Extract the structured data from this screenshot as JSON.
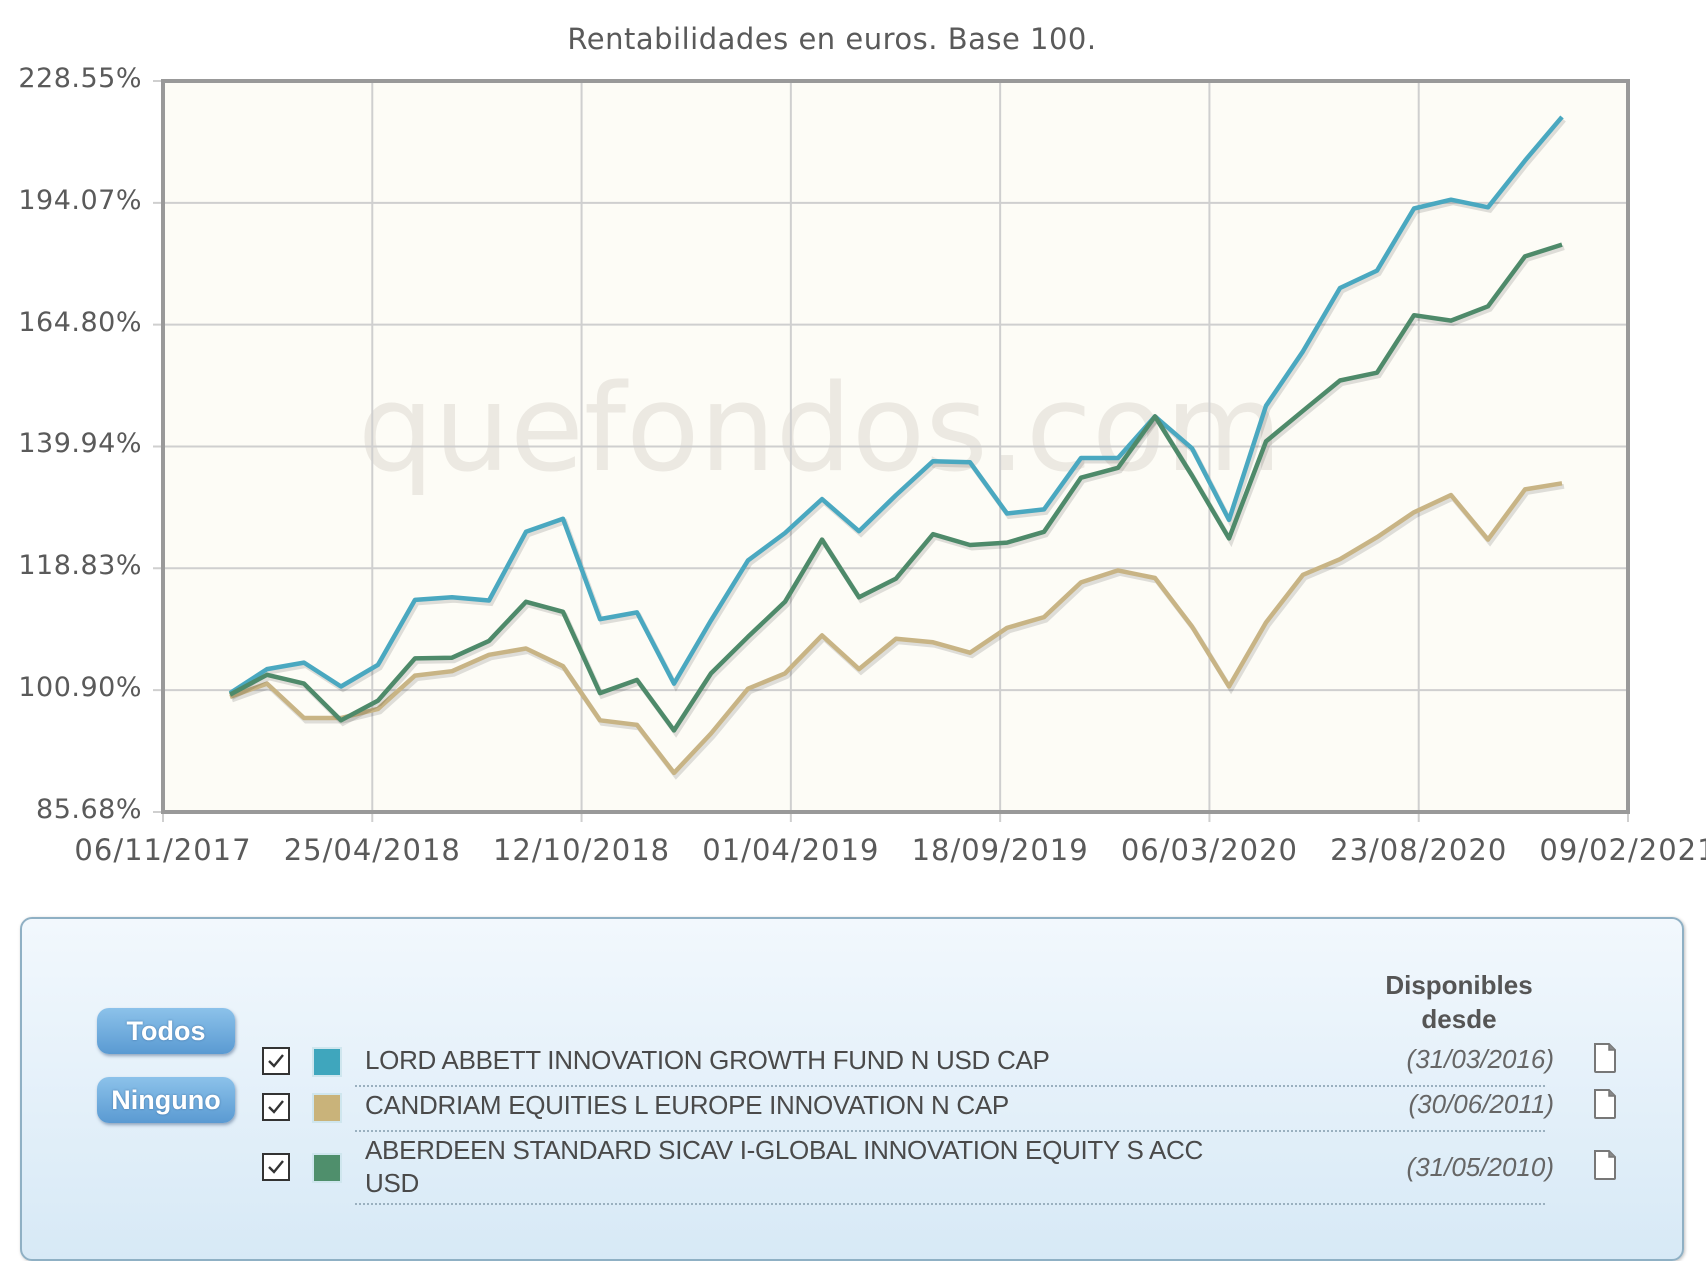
{
  "chart_data": {
    "type": "line",
    "title": "Rentabilidades en euros. Base 100.",
    "xlabel": "",
    "ylabel": "",
    "y_scale": "log",
    "ylim": [
      85.68,
      228.55
    ],
    "y_ticks": [
      "228.55%",
      "194.07%",
      "164.80%",
      "139.94%",
      "118.83%",
      "100.90%",
      "85.68%"
    ],
    "y_tick_values": [
      228.55,
      194.07,
      164.8,
      139.94,
      118.83,
      100.9,
      85.68
    ],
    "x_ticks": [
      "06/11/2017",
      "25/04/2018",
      "12/10/2018",
      "01/04/2019",
      "18/09/2019",
      "06/03/2020",
      "23/08/2020",
      "09/02/2021"
    ],
    "grid": true,
    "legend_position": "bottom",
    "watermark": "quefondos.com",
    "x_points": "monthly, Dec 2017 – Jan 2021 (37 points)",
    "series": [
      {
        "name": "LORD ABBETT INNOVATION GROWTH FUND N USD CAP",
        "color": "#4aa8c0",
        "values": [
          100.5,
          103.8,
          104.7,
          101.4,
          104.4,
          113.9,
          114.3,
          113.8,
          124.8,
          127.0,
          111.0,
          112.0,
          101.8,
          110.8,
          120.1,
          124.6,
          130.4,
          124.9,
          131.1,
          137.2,
          137.0,
          127.9,
          128.6,
          137.8,
          137.8,
          145.7,
          139.6,
          126.8,
          147.8,
          159.0,
          173.1,
          177.2,
          192.6,
          194.9,
          192.9,
          205.4,
          217.8
        ]
      },
      {
        "name": "CANDRIAM EQUITIES L EUROPE INNOVATION N CAP",
        "color": "#c8b485",
        "values": [
          100.0,
          101.8,
          97.2,
          97.2,
          98.4,
          102.9,
          103.5,
          105.8,
          106.7,
          104.2,
          96.9,
          96.3,
          90.3,
          95.2,
          101.1,
          103.2,
          108.6,
          103.8,
          108.1,
          107.6,
          106.1,
          109.7,
          111.3,
          116.6,
          118.5,
          117.3,
          109.9,
          101.4,
          110.5,
          117.8,
          120.3,
          123.9,
          128.1,
          131.1,
          123.5,
          132.1,
          133.2
        ]
      },
      {
        "name": "ABERDEEN STANDARD SICAV I-GLOBAL INNOVATION EQUITY S ACC USD",
        "color": "#4e8a6a",
        "values": [
          100.3,
          103.0,
          101.8,
          96.9,
          99.5,
          105.3,
          105.4,
          107.8,
          113.6,
          112.1,
          100.5,
          102.3,
          95.6,
          103.2,
          108.4,
          113.6,
          123.5,
          114.3,
          117.2,
          124.4,
          122.6,
          123.0,
          124.8,
          134.2,
          136.0,
          145.7,
          134.6,
          123.7,
          140.9,
          146.8,
          152.9,
          154.5,
          166.9,
          165.7,
          168.9,
          180.6,
          183.5
        ]
      }
    ]
  },
  "legend": {
    "buttons": {
      "all": "Todos",
      "none": "Ninguno"
    },
    "available_header_line1": "Disponibles",
    "available_header_line2": "desde",
    "funds": [
      {
        "name": "LORD ABBETT INNOVATION GROWTH FUND N USD CAP",
        "since": "(31/03/2016)",
        "checked": true,
        "color": "#3fa6bd"
      },
      {
        "name": "CANDRIAM EQUITIES L EUROPE INNOVATION N CAP",
        "since": "(30/06/2011)",
        "checked": true,
        "color": "#c9b37a"
      },
      {
        "name_line1": "ABERDEEN STANDARD SICAV I-GLOBAL INNOVATION EQUITY S ACC",
        "name_line2": "USD",
        "since": "(31/05/2010)",
        "checked": true,
        "color": "#4f8f6c"
      }
    ],
    "icons": {
      "checkbox": "checkbox-checked-icon",
      "document": "document-icon"
    }
  }
}
